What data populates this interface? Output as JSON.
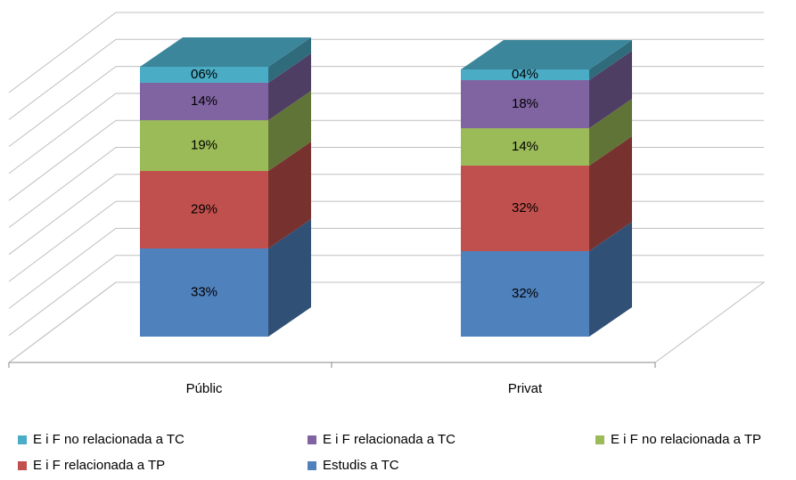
{
  "chart_data": {
    "type": "bar3d_stacked",
    "categories": [
      "Públic",
      "Privat"
    ],
    "series": [
      {
        "name": "E i F no relacionada a TC",
        "color": "#4bacc6",
        "values": [
          6,
          4
        ],
        "value_labels": [
          "06%",
          "04%"
        ]
      },
      {
        "name": "E i F relacionada a TC",
        "color": "#8064a2",
        "values": [
          14,
          18
        ],
        "value_labels": [
          "14%",
          "18%"
        ]
      },
      {
        "name": "E i F no relacionada a TP",
        "color": "#9bbb59",
        "values": [
          19,
          14
        ],
        "value_labels": [
          "19%",
          "14%"
        ]
      },
      {
        "name": "E i F relacionada a TP",
        "color": "#c0504d",
        "values": [
          29,
          32
        ],
        "value_labels": [
          "29%",
          "32%"
        ]
      },
      {
        "name": "Estudis a TC",
        "color": "#4f81bd",
        "values": [
          33,
          32
        ],
        "value_labels": [
          "33%",
          "32%"
        ]
      }
    ],
    "ylim": [
      0,
      100
    ],
    "yticks": [
      0,
      10,
      20,
      30,
      40,
      50,
      60,
      70,
      80,
      90,
      100
    ],
    "grid": true
  }
}
